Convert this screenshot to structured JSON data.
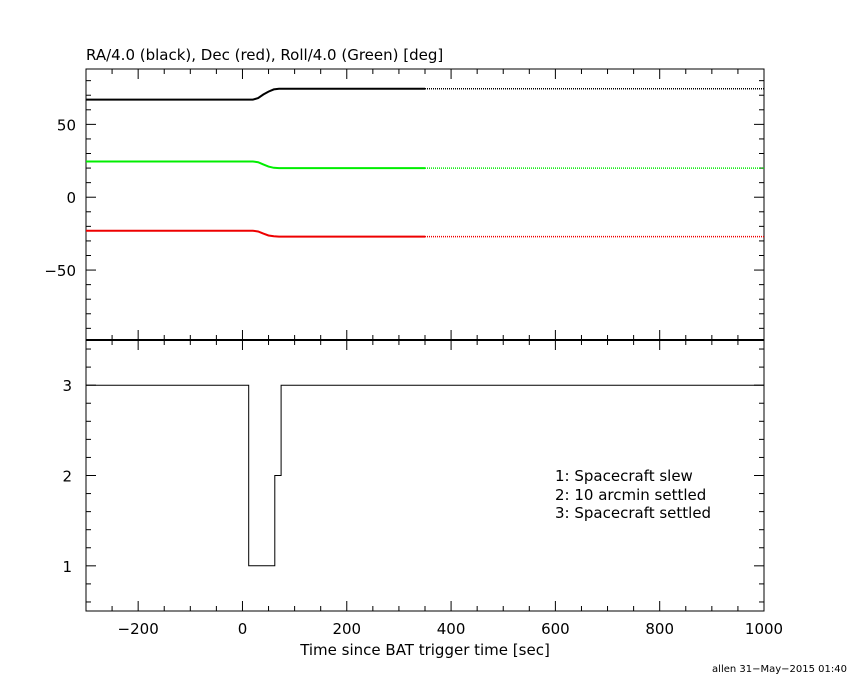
{
  "chart_data": [
    {
      "type": "line",
      "title": "RA/4.0 (black), Dec (red), Roll/4.0 (Green) [deg]",
      "ylim": [
        -98,
        88
      ],
      "yticks": [
        -50,
        0,
        50
      ],
      "ytick_labels": [
        "−50",
        "0",
        "50"
      ],
      "series": [
        {
          "color": "#000000",
          "x": [
            -300,
            -200,
            -100,
            0,
            20,
            30,
            40,
            50,
            60,
            70,
            80,
            100,
            200,
            350,
            1000
          ],
          "y": [
            67,
            67,
            67,
            67,
            67,
            68,
            70.5,
            72.5,
            74,
            74.5,
            74.5,
            74.5,
            74.5,
            74.5,
            74.5
          ],
          "dotted_after_x": 350
        },
        {
          "color": "#00ee00",
          "x": [
            -300,
            -200,
            -100,
            0,
            20,
            30,
            40,
            50,
            60,
            70,
            80,
            100,
            200,
            350,
            1000
          ],
          "y": [
            24.5,
            24.5,
            24.5,
            24.5,
            24.5,
            24,
            22.5,
            21,
            20.2,
            20,
            20,
            20,
            20,
            20,
            20
          ],
          "dotted_after_x": 350
        },
        {
          "color": "#ee0000",
          "x": [
            -300,
            -200,
            -100,
            0,
            20,
            30,
            40,
            50,
            60,
            70,
            80,
            100,
            200,
            350,
            1000
          ],
          "y": [
            -23,
            -23,
            -23,
            -23,
            -23,
            -23.5,
            -25,
            -26.3,
            -26.8,
            -27,
            -27,
            -27,
            -27,
            -27,
            -27
          ],
          "dotted_after_x": 350
        }
      ]
    },
    {
      "type": "line",
      "xlabel": "Time since BAT trigger time [sec]",
      "xlim": [
        -300,
        1000
      ],
      "xticks": [
        -200,
        0,
        200,
        400,
        600,
        800,
        1000
      ],
      "xtick_labels": [
        "−200",
        "0",
        "200",
        "400",
        "600",
        "800",
        "1000"
      ],
      "ylim": [
        0.5,
        3.5
      ],
      "yticks": [
        1,
        2,
        3
      ],
      "ytick_labels": [
        "1",
        "2",
        "3"
      ],
      "series": [
        {
          "color": "#000000",
          "step": true,
          "x": [
            -300,
            12,
            12,
            62,
            62,
            74,
            74,
            1000
          ],
          "y": [
            3,
            3,
            1,
            1,
            2,
            2,
            3,
            3
          ]
        }
      ],
      "legend": [
        "1: Spacecraft slew",
        "2: 10 arcmin settled",
        "3: Spacecraft settled"
      ]
    }
  ],
  "footer": "allen 31−May−2015 01:40"
}
